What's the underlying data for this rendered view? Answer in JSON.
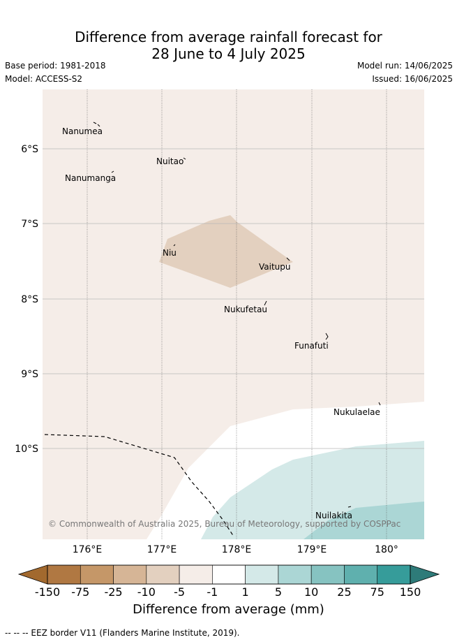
{
  "title": {
    "line1": "Difference from average rainfall forecast for",
    "line2": "28 June to 4 July 2025"
  },
  "meta": {
    "base_period": "Base period: 1981-2018",
    "model": "Model: ACCESS-S2",
    "model_run": "Model run: 14/06/2025",
    "issued": "Issued: 16/06/2025"
  },
  "map": {
    "lat_labels": [
      "6°S",
      "7°S",
      "8°S",
      "9°S",
      "10°S"
    ],
    "lon_labels": [
      "176°E",
      "177°E",
      "178°E",
      "179°E",
      "180°"
    ],
    "places": [
      "Nanumea",
      "Nuitao",
      "Nanumanga",
      "Niu",
      "Vaitupu",
      "Nukufetau",
      "Funafuti",
      "Nukulaelae",
      "Nuilakita"
    ],
    "copyright": "© Commonwealth of Australia 2025, Bureau of Meteorology, supported by COSPPac",
    "colors": {
      "background_minus5_to_minus1": "#f5ede8",
      "minus10_to_minus5": "#e3d0bf",
      "minus1_to_1": "#ffffff",
      "1_to_5": "#d4e9e8",
      "5_to_10": "#abd6d5"
    }
  },
  "colorbar": {
    "title": "Difference from average (mm)",
    "ticks": [
      "-150",
      "-75",
      "-25",
      "-10",
      "-5",
      "-1",
      "1",
      "5",
      "10",
      "25",
      "75",
      "150"
    ],
    "colors": [
      "#b07842",
      "#c59768",
      "#d6b596",
      "#e3d0bf",
      "#f5ede8",
      "#ffffff",
      "#d4e9e8",
      "#abd6d5",
      "#86c3c1",
      "#5fb0ae",
      "#369c9a"
    ],
    "extend_low_color": "#a2692e",
    "extend_high_color": "#2e7b79"
  },
  "footnote": "-- -- -- EEZ border V11 (Flanders Marine Institute, 2019)."
}
